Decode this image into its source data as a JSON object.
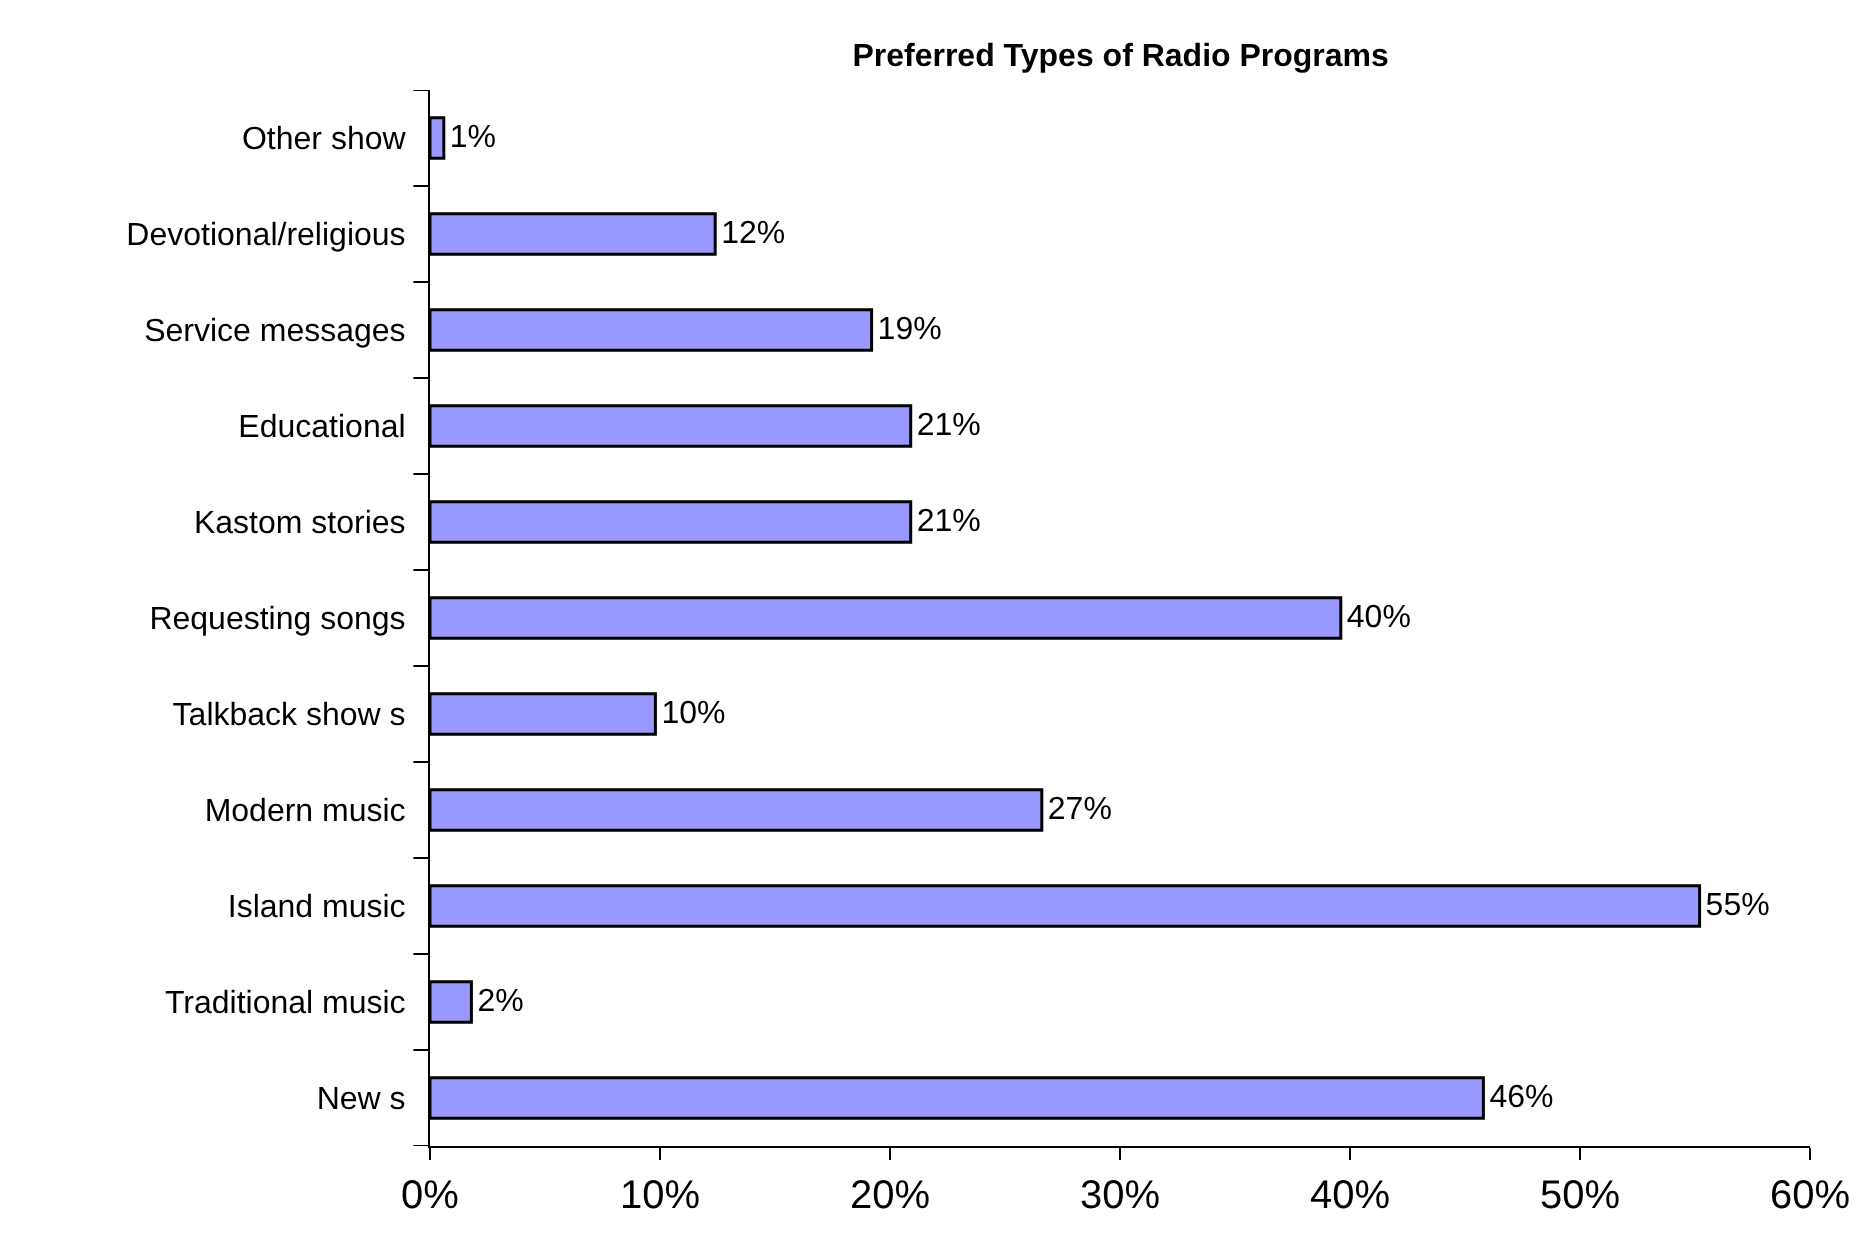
{
  "chart_data": {
    "type": "bar",
    "orientation": "horizontal",
    "title": "Preferred Types of Radio Programs",
    "categories": [
      "Other show",
      "Devotional/religious",
      "Service messages",
      "Educational",
      "Kastom stories",
      "Requesting songs",
      "Talkback show s",
      "Modern music",
      "Island music",
      "Traditional music",
      "New s"
    ],
    "values": [
      0.6,
      12.4,
      19.2,
      20.9,
      20.9,
      39.6,
      9.8,
      26.6,
      55.2,
      1.8,
      45.8
    ],
    "value_labels": [
      "1%",
      "12%",
      "19%",
      "21%",
      "21%",
      "40%",
      "10%",
      "27%",
      "55%",
      "2%",
      "46%"
    ],
    "color": "#9999ff",
    "xlim": [
      0,
      60
    ],
    "xticks": [
      {
        "value": 0,
        "label": "0%"
      },
      {
        "value": 10,
        "label": "10%"
      },
      {
        "value": 20,
        "label": "20%"
      },
      {
        "value": 30,
        "label": "30%"
      },
      {
        "value": 40,
        "label": "40%"
      },
      {
        "value": 50,
        "label": "50%"
      },
      {
        "value": 60,
        "label": "60%"
      }
    ]
  }
}
